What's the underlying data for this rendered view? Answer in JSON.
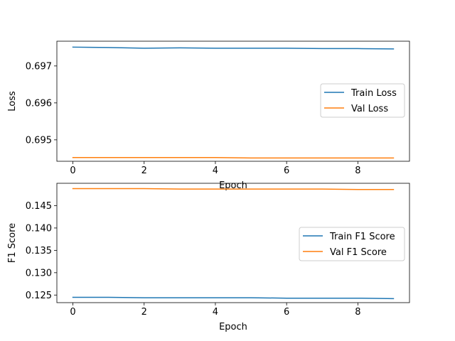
{
  "chart_data": [
    {
      "type": "line",
      "xlabel": "Epoch",
      "ylabel": "Loss",
      "x": [
        0,
        1,
        2,
        3,
        4,
        5,
        6,
        7,
        8,
        9
      ],
      "xlim": [
        -0.45,
        9.45
      ],
      "ylim": [
        0.69442,
        0.69767
      ],
      "xticks": [
        0,
        2,
        4,
        6,
        8
      ],
      "xtick_labels": [
        "0",
        "2",
        "4",
        "6",
        "8"
      ],
      "yticks": [
        0.695,
        0.696,
        0.697
      ],
      "ytick_labels": [
        "0.695",
        "0.696",
        "0.697"
      ],
      "grid": false,
      "legend_position": "center-right",
      "series": [
        {
          "name": "Train Loss",
          "color": "#1f77b4",
          "values": [
            0.69751,
            0.6975,
            0.69748,
            0.69749,
            0.69748,
            0.69748,
            0.69748,
            0.69747,
            0.69747,
            0.69746
          ]
        },
        {
          "name": "Val Loss",
          "color": "#ff7f0e",
          "values": [
            0.69452,
            0.69452,
            0.69452,
            0.69452,
            0.69452,
            0.69451,
            0.69451,
            0.69451,
            0.69451,
            0.69451
          ]
        }
      ]
    },
    {
      "type": "line",
      "xlabel": "Epoch",
      "ylabel": "F1 Score",
      "x": [
        0,
        1,
        2,
        3,
        4,
        5,
        6,
        7,
        8,
        9
      ],
      "xlim": [
        -0.45,
        9.45
      ],
      "ylim": [
        0.1233,
        0.15
      ],
      "xticks": [
        0,
        2,
        4,
        6,
        8
      ],
      "xtick_labels": [
        "0",
        "2",
        "4",
        "6",
        "8"
      ],
      "yticks": [
        0.125,
        0.13,
        0.135,
        0.14,
        0.145
      ],
      "ytick_labels": [
        "0.125",
        "0.130",
        "0.135",
        "0.140",
        "0.145"
      ],
      "grid": false,
      "legend_position": "center-right",
      "series": [
        {
          "name": "Train F1 Score",
          "color": "#1f77b4",
          "values": [
            0.1245,
            0.1245,
            0.1244,
            0.1244,
            0.1244,
            0.1244,
            0.1243,
            0.1243,
            0.1243,
            0.1242
          ]
        },
        {
          "name": "Val F1 Score",
          "color": "#ff7f0e",
          "values": [
            0.1488,
            0.1488,
            0.1488,
            0.1487,
            0.1487,
            0.1487,
            0.1487,
            0.1487,
            0.1486,
            0.1486
          ]
        }
      ]
    }
  ]
}
